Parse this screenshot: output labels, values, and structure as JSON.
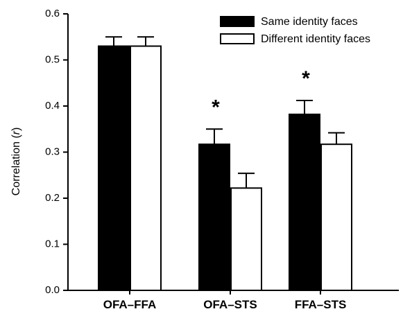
{
  "chart_data": {
    "type": "bar",
    "categories": [
      "OFA–FFA",
      "OFA–STS",
      "FFA–STS"
    ],
    "series": [
      {
        "name": "Same identity faces",
        "color": "#000000",
        "fill": "#000000",
        "values": [
          0.53,
          0.317,
          0.382
        ],
        "errors": [
          0.02,
          0.033,
          0.03
        ]
      },
      {
        "name": "Different identity faces",
        "color": "#000000",
        "fill": "#ffffff",
        "values": [
          0.53,
          0.222,
          0.317
        ],
        "errors": [
          0.02,
          0.032,
          0.025
        ]
      }
    ],
    "ylabel_prefix": "Correlation (",
    "ylabel_var": "r",
    "ylabel_suffix": ")",
    "ylim": [
      0,
      0.6
    ],
    "yticks": [
      "0.0",
      "0.1",
      "0.2",
      "0.3",
      "0.4",
      "0.5",
      "0.6"
    ],
    "significance": [
      "",
      "*",
      "*"
    ],
    "legend_position": "top-right",
    "grid": false
  }
}
